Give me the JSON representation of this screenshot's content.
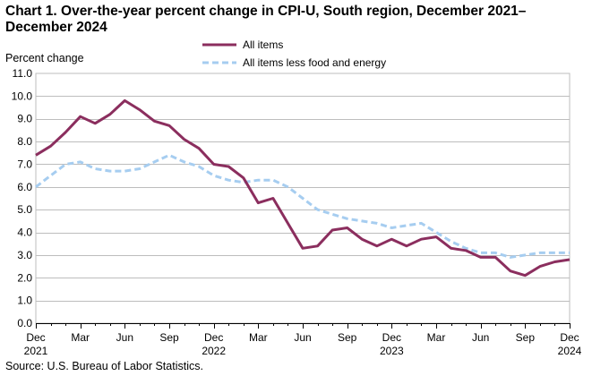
{
  "chart_data": {
    "type": "line",
    "title": "Chart 1. Over-the-year percent change in CPI-U, South region, December 2021–December 2024",
    "ylabel": "Percent change",
    "xlabel": "",
    "ylim": [
      0,
      11
    ],
    "yticks": [
      "0.0",
      "1.0",
      "2.0",
      "3.0",
      "4.0",
      "5.0",
      "6.0",
      "7.0",
      "8.0",
      "9.0",
      "10.0",
      "11.0"
    ],
    "x_tick_labels": [
      {
        "index": 0,
        "month": "Dec",
        "year": "2021"
      },
      {
        "index": 3,
        "month": "Mar",
        "year": ""
      },
      {
        "index": 6,
        "month": "Jun",
        "year": ""
      },
      {
        "index": 9,
        "month": "Sep",
        "year": ""
      },
      {
        "index": 12,
        "month": "Dec",
        "year": "2022"
      },
      {
        "index": 15,
        "month": "Mar",
        "year": ""
      },
      {
        "index": 18,
        "month": "Jun",
        "year": ""
      },
      {
        "index": 21,
        "month": "Sep",
        "year": ""
      },
      {
        "index": 24,
        "month": "Dec",
        "year": "2023"
      },
      {
        "index": 27,
        "month": "Mar",
        "year": ""
      },
      {
        "index": 30,
        "month": "Jun",
        "year": ""
      },
      {
        "index": 33,
        "month": "Sep",
        "year": ""
      },
      {
        "index": 36,
        "month": "Dec",
        "year": "2024"
      }
    ],
    "series": [
      {
        "name": "All items",
        "color": "#8b2e5e",
        "style": "solid",
        "values": [
          7.4,
          7.8,
          8.4,
          9.1,
          8.8,
          9.2,
          9.8,
          9.4,
          8.9,
          8.7,
          8.1,
          7.7,
          7.0,
          6.9,
          6.4,
          5.3,
          5.5,
          4.4,
          3.3,
          3.4,
          4.1,
          4.2,
          3.7,
          3.4,
          3.7,
          3.4,
          3.7,
          3.8,
          3.3,
          3.2,
          2.9,
          2.9,
          2.3,
          2.1,
          2.5,
          2.7,
          2.8
        ]
      },
      {
        "name": "All items less food and energy",
        "color": "#a6cdf0",
        "style": "dashed",
        "values": [
          6.0,
          6.5,
          7.0,
          7.1,
          6.8,
          6.7,
          6.7,
          6.8,
          7.1,
          7.4,
          7.1,
          6.9,
          6.5,
          6.3,
          6.2,
          6.3,
          6.3,
          6.0,
          5.5,
          5.0,
          4.8,
          4.6,
          4.5,
          4.4,
          4.2,
          4.3,
          4.4,
          4.0,
          3.6,
          3.3,
          3.1,
          3.1,
          2.9,
          3.0,
          3.1,
          3.1,
          3.1
        ]
      }
    ],
    "legend_position": "top-center",
    "grid": true
  },
  "source": "Source: U.S. Bureau of Labor Statistics."
}
